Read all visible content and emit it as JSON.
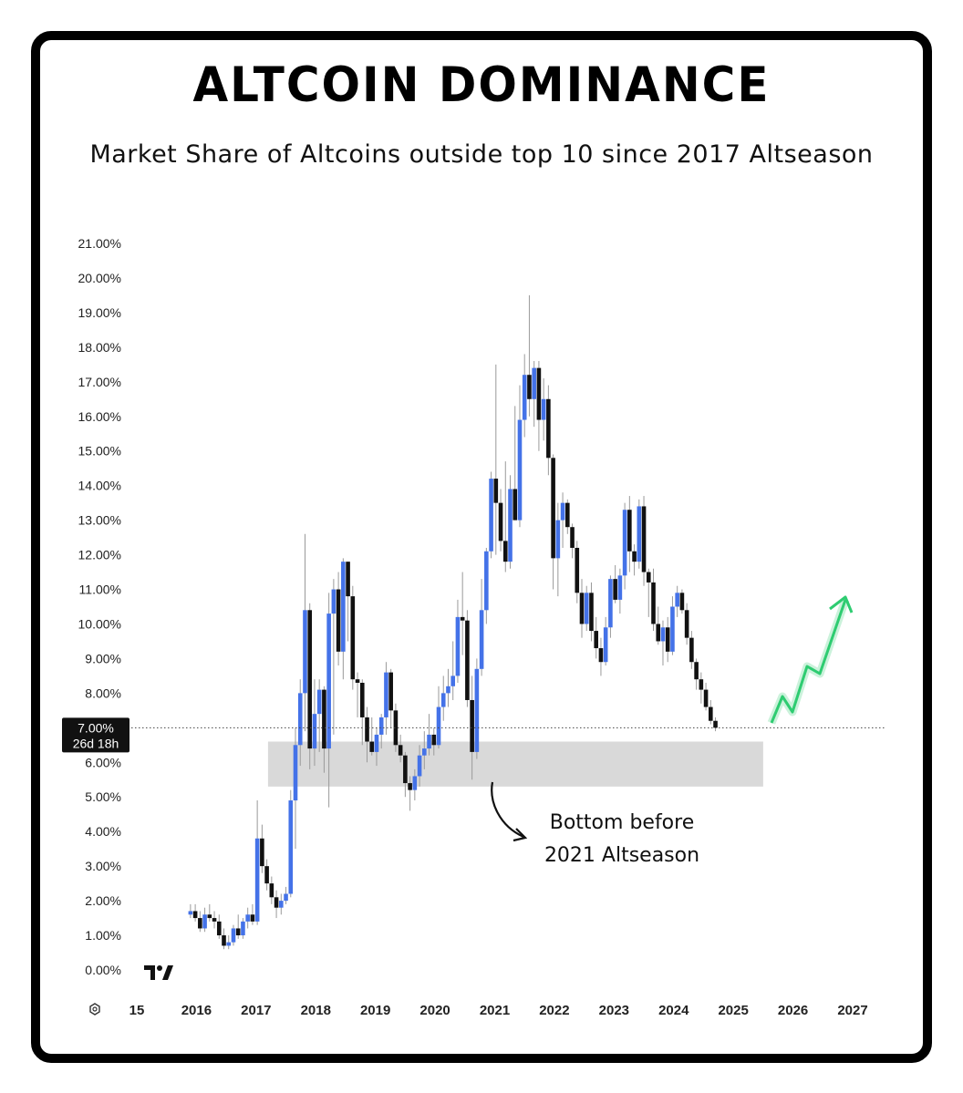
{
  "title": "ALTCOIN DOMINANCE",
  "subtitle": "Market Share of Altcoins outside top 10 since 2017 Altseason",
  "price_tag": {
    "value": "7.00%",
    "countdown": "26d 18h"
  },
  "annotation": {
    "line1": "Bottom before",
    "line2": "2021 Altseason"
  },
  "colors": {
    "up": "#4472e8",
    "down": "#111111",
    "zone": "#d9d9d9",
    "arrow": "#2ecc71"
  },
  "chart_data": {
    "type": "candlestick",
    "x_ticks": [
      "15",
      "2016",
      "2017",
      "2018",
      "2019",
      "2020",
      "2021",
      "2022",
      "2023",
      "2024",
      "2025",
      "2026",
      "2027"
    ],
    "y_ticks": [
      "21.00%",
      "20.00%",
      "19.00%",
      "18.00%",
      "17.00%",
      "16.00%",
      "15.00%",
      "14.00%",
      "13.00%",
      "12.00%",
      "11.00%",
      "10.00%",
      "9.00%",
      "8.00%",
      "7.00%",
      "6.00%",
      "5.00%",
      "4.00%",
      "3.00%",
      "2.00%",
      "1.00%",
      "0.00%"
    ],
    "ylim": [
      0,
      21
    ],
    "xlim": [
      2015.0,
      2027.0
    ],
    "current_level": 7.0,
    "support_zone": {
      "from": 5.3,
      "to": 6.6,
      "x_start": 2017.2,
      "x_end": 2025.5
    },
    "candles": [
      {
        "t": 2015.9,
        "o": 1.6,
        "h": 1.9,
        "l": 1.5,
        "c": 1.7
      },
      {
        "t": 2015.98,
        "o": 1.7,
        "h": 1.9,
        "l": 1.4,
        "c": 1.5
      },
      {
        "t": 2016.06,
        "o": 1.5,
        "h": 1.7,
        "l": 1.1,
        "c": 1.2
      },
      {
        "t": 2016.14,
        "o": 1.2,
        "h": 1.8,
        "l": 1.1,
        "c": 1.6
      },
      {
        "t": 2016.22,
        "o": 1.6,
        "h": 1.9,
        "l": 1.4,
        "c": 1.5
      },
      {
        "t": 2016.3,
        "o": 1.5,
        "h": 1.7,
        "l": 1.2,
        "c": 1.4
      },
      {
        "t": 2016.38,
        "o": 1.4,
        "h": 1.6,
        "l": 0.9,
        "c": 1.0
      },
      {
        "t": 2016.46,
        "o": 1.0,
        "h": 1.2,
        "l": 0.6,
        "c": 0.7
      },
      {
        "t": 2016.54,
        "o": 0.7,
        "h": 1.0,
        "l": 0.6,
        "c": 0.8
      },
      {
        "t": 2016.62,
        "o": 0.8,
        "h": 1.3,
        "l": 0.7,
        "c": 1.2
      },
      {
        "t": 2016.7,
        "o": 1.2,
        "h": 1.6,
        "l": 0.9,
        "c": 1.0
      },
      {
        "t": 2016.78,
        "o": 1.0,
        "h": 1.5,
        "l": 0.9,
        "c": 1.4
      },
      {
        "t": 2016.86,
        "o": 1.4,
        "h": 1.8,
        "l": 1.2,
        "c": 1.6
      },
      {
        "t": 2016.94,
        "o": 1.6,
        "h": 1.9,
        "l": 1.3,
        "c": 1.4
      },
      {
        "t": 2017.02,
        "o": 1.4,
        "h": 4.9,
        "l": 1.3,
        "c": 3.8
      },
      {
        "t": 2017.1,
        "o": 3.8,
        "h": 4.2,
        "l": 2.8,
        "c": 3.0
      },
      {
        "t": 2017.18,
        "o": 3.0,
        "h": 3.2,
        "l": 2.3,
        "c": 2.5
      },
      {
        "t": 2017.26,
        "o": 2.5,
        "h": 2.7,
        "l": 1.9,
        "c": 2.1
      },
      {
        "t": 2017.34,
        "o": 2.1,
        "h": 2.3,
        "l": 1.5,
        "c": 1.8
      },
      {
        "t": 2017.42,
        "o": 1.8,
        "h": 2.2,
        "l": 1.6,
        "c": 2.0
      },
      {
        "t": 2017.5,
        "o": 2.0,
        "h": 2.4,
        "l": 1.9,
        "c": 2.2
      },
      {
        "t": 2017.58,
        "o": 2.2,
        "h": 5.2,
        "l": 2.1,
        "c": 4.9
      },
      {
        "t": 2017.66,
        "o": 4.9,
        "h": 7.0,
        "l": 3.5,
        "c": 6.5
      },
      {
        "t": 2017.74,
        "o": 6.5,
        "h": 8.4,
        "l": 5.9,
        "c": 8.0
      },
      {
        "t": 2017.82,
        "o": 8.0,
        "h": 12.6,
        "l": 6.9,
        "c": 10.4
      },
      {
        "t": 2017.9,
        "o": 10.4,
        "h": 10.6,
        "l": 5.8,
        "c": 6.4
      },
      {
        "t": 2017.98,
        "o": 6.4,
        "h": 8.4,
        "l": 5.9,
        "c": 7.4
      },
      {
        "t": 2018.06,
        "o": 7.4,
        "h": 8.4,
        "l": 6.3,
        "c": 8.1
      },
      {
        "t": 2018.14,
        "o": 8.1,
        "h": 8.2,
        "l": 5.7,
        "c": 6.4
      },
      {
        "t": 2018.22,
        "o": 6.4,
        "h": 10.9,
        "l": 4.7,
        "c": 10.3
      },
      {
        "t": 2018.3,
        "o": 10.3,
        "h": 11.3,
        "l": 6.8,
        "c": 11.0
      },
      {
        "t": 2018.38,
        "o": 11.0,
        "h": 11.5,
        "l": 8.8,
        "c": 9.2
      },
      {
        "t": 2018.46,
        "o": 9.2,
        "h": 11.9,
        "l": 8.4,
        "c": 11.8
      },
      {
        "t": 2018.54,
        "o": 11.8,
        "h": 11.8,
        "l": 9.5,
        "c": 10.8
      },
      {
        "t": 2018.62,
        "o": 10.8,
        "h": 11.1,
        "l": 8.1,
        "c": 8.4
      },
      {
        "t": 2018.7,
        "o": 8.4,
        "h": 8.6,
        "l": 7.3,
        "c": 8.3
      },
      {
        "t": 2018.78,
        "o": 8.3,
        "h": 8.4,
        "l": 6.5,
        "c": 7.3
      },
      {
        "t": 2018.86,
        "o": 7.3,
        "h": 7.6,
        "l": 6.0,
        "c": 6.6
      },
      {
        "t": 2018.94,
        "o": 6.6,
        "h": 7.3,
        "l": 6.2,
        "c": 6.3
      },
      {
        "t": 2019.02,
        "o": 6.3,
        "h": 7.0,
        "l": 5.9,
        "c": 6.8
      },
      {
        "t": 2019.1,
        "o": 6.8,
        "h": 7.4,
        "l": 6.4,
        "c": 7.3
      },
      {
        "t": 2019.18,
        "o": 7.3,
        "h": 8.9,
        "l": 6.8,
        "c": 8.6
      },
      {
        "t": 2019.26,
        "o": 8.6,
        "h": 8.7,
        "l": 7.0,
        "c": 7.5
      },
      {
        "t": 2019.34,
        "o": 7.5,
        "h": 7.7,
        "l": 6.3,
        "c": 6.5
      },
      {
        "t": 2019.42,
        "o": 6.5,
        "h": 6.8,
        "l": 6.0,
        "c": 6.2
      },
      {
        "t": 2019.5,
        "o": 6.2,
        "h": 6.3,
        "l": 5.0,
        "c": 5.4
      },
      {
        "t": 2019.58,
        "o": 5.4,
        "h": 5.6,
        "l": 4.6,
        "c": 5.2
      },
      {
        "t": 2019.66,
        "o": 5.2,
        "h": 5.8,
        "l": 4.9,
        "c": 5.6
      },
      {
        "t": 2019.74,
        "o": 5.6,
        "h": 6.5,
        "l": 5.3,
        "c": 6.2
      },
      {
        "t": 2019.82,
        "o": 6.2,
        "h": 6.9,
        "l": 5.8,
        "c": 6.4
      },
      {
        "t": 2019.9,
        "o": 6.4,
        "h": 7.4,
        "l": 6.2,
        "c": 6.8
      },
      {
        "t": 2019.98,
        "o": 6.8,
        "h": 7.0,
        "l": 6.2,
        "c": 6.5
      },
      {
        "t": 2020.06,
        "o": 6.5,
        "h": 8.2,
        "l": 6.4,
        "c": 7.6
      },
      {
        "t": 2020.14,
        "o": 7.6,
        "h": 8.5,
        "l": 7.2,
        "c": 8.0
      },
      {
        "t": 2020.22,
        "o": 8.0,
        "h": 8.7,
        "l": 7.6,
        "c": 8.2
      },
      {
        "t": 2020.3,
        "o": 8.2,
        "h": 9.5,
        "l": 7.8,
        "c": 8.5
      },
      {
        "t": 2020.38,
        "o": 8.5,
        "h": 10.7,
        "l": 8.3,
        "c": 10.2
      },
      {
        "t": 2020.46,
        "o": 10.2,
        "h": 11.5,
        "l": 9.1,
        "c": 10.1
      },
      {
        "t": 2020.54,
        "o": 10.1,
        "h": 10.4,
        "l": 7.6,
        "c": 7.8
      },
      {
        "t": 2020.62,
        "o": 7.8,
        "h": 8.5,
        "l": 5.5,
        "c": 6.3
      },
      {
        "t": 2020.7,
        "o": 6.3,
        "h": 9.0,
        "l": 6.1,
        "c": 8.7
      },
      {
        "t": 2020.78,
        "o": 8.7,
        "h": 11.3,
        "l": 8.5,
        "c": 10.4
      },
      {
        "t": 2020.86,
        "o": 10.4,
        "h": 12.2,
        "l": 10.0,
        "c": 12.1
      },
      {
        "t": 2020.94,
        "o": 12.1,
        "h": 14.4,
        "l": 11.9,
        "c": 14.2
      },
      {
        "t": 2021.02,
        "o": 14.2,
        "h": 17.5,
        "l": 12.0,
        "c": 13.5
      },
      {
        "t": 2021.1,
        "o": 13.5,
        "h": 13.9,
        "l": 12.1,
        "c": 12.4
      },
      {
        "t": 2021.18,
        "o": 12.4,
        "h": 14.7,
        "l": 11.5,
        "c": 11.8
      },
      {
        "t": 2021.26,
        "o": 11.8,
        "h": 14.3,
        "l": 11.6,
        "c": 13.9
      },
      {
        "t": 2021.34,
        "o": 13.9,
        "h": 16.3,
        "l": 13.0,
        "c": 13.0
      },
      {
        "t": 2021.42,
        "o": 13.0,
        "h": 16.9,
        "l": 12.8,
        "c": 15.9
      },
      {
        "t": 2021.5,
        "o": 15.9,
        "h": 17.8,
        "l": 15.4,
        "c": 17.2
      },
      {
        "t": 2021.58,
        "o": 17.2,
        "h": 19.5,
        "l": 16.0,
        "c": 16.5
      },
      {
        "t": 2021.66,
        "o": 16.5,
        "h": 17.6,
        "l": 15.7,
        "c": 17.4
      },
      {
        "t": 2021.74,
        "o": 17.4,
        "h": 17.6,
        "l": 15.0,
        "c": 15.9
      },
      {
        "t": 2021.82,
        "o": 15.9,
        "h": 17.1,
        "l": 15.3,
        "c": 16.5
      },
      {
        "t": 2021.9,
        "o": 16.5,
        "h": 16.9,
        "l": 14.3,
        "c": 14.8
      },
      {
        "t": 2021.98,
        "o": 14.8,
        "h": 14.9,
        "l": 11.0,
        "c": 11.9
      },
      {
        "t": 2022.06,
        "o": 11.9,
        "h": 13.5,
        "l": 10.8,
        "c": 13.0
      },
      {
        "t": 2022.14,
        "o": 13.0,
        "h": 13.8,
        "l": 12.2,
        "c": 13.5
      },
      {
        "t": 2022.22,
        "o": 13.5,
        "h": 13.6,
        "l": 12.6,
        "c": 12.8
      },
      {
        "t": 2022.3,
        "o": 12.8,
        "h": 12.9,
        "l": 11.9,
        "c": 12.2
      },
      {
        "t": 2022.38,
        "o": 12.2,
        "h": 12.4,
        "l": 10.6,
        "c": 10.9
      },
      {
        "t": 2022.46,
        "o": 10.9,
        "h": 11.3,
        "l": 9.6,
        "c": 10.0
      },
      {
        "t": 2022.54,
        "o": 10.0,
        "h": 11.1,
        "l": 9.8,
        "c": 10.9
      },
      {
        "t": 2022.62,
        "o": 10.9,
        "h": 11.2,
        "l": 9.5,
        "c": 9.8
      },
      {
        "t": 2022.7,
        "o": 9.8,
        "h": 10.2,
        "l": 9.0,
        "c": 9.3
      },
      {
        "t": 2022.78,
        "o": 9.3,
        "h": 9.6,
        "l": 8.5,
        "c": 8.9
      },
      {
        "t": 2022.86,
        "o": 8.9,
        "h": 10.2,
        "l": 8.8,
        "c": 9.9
      },
      {
        "t": 2022.94,
        "o": 9.9,
        "h": 11.4,
        "l": 9.6,
        "c": 11.3
      },
      {
        "t": 2023.02,
        "o": 11.3,
        "h": 11.7,
        "l": 10.6,
        "c": 10.7
      },
      {
        "t": 2023.1,
        "o": 10.7,
        "h": 11.6,
        "l": 10.3,
        "c": 11.4
      },
      {
        "t": 2023.18,
        "o": 11.4,
        "h": 13.5,
        "l": 11.0,
        "c": 13.3
      },
      {
        "t": 2023.26,
        "o": 13.3,
        "h": 13.7,
        "l": 11.5,
        "c": 12.1
      },
      {
        "t": 2023.34,
        "o": 12.1,
        "h": 12.3,
        "l": 11.4,
        "c": 11.8
      },
      {
        "t": 2023.42,
        "o": 11.8,
        "h": 13.6,
        "l": 11.6,
        "c": 13.4
      },
      {
        "t": 2023.5,
        "o": 13.4,
        "h": 13.7,
        "l": 11.1,
        "c": 11.5
      },
      {
        "t": 2023.58,
        "o": 11.5,
        "h": 11.6,
        "l": 10.2,
        "c": 11.2
      },
      {
        "t": 2023.66,
        "o": 11.2,
        "h": 11.6,
        "l": 9.8,
        "c": 10.0
      },
      {
        "t": 2023.74,
        "o": 10.0,
        "h": 10.5,
        "l": 9.4,
        "c": 9.5
      },
      {
        "t": 2023.82,
        "o": 9.5,
        "h": 10.1,
        "l": 8.8,
        "c": 9.9
      },
      {
        "t": 2023.9,
        "o": 9.9,
        "h": 10.2,
        "l": 8.9,
        "c": 9.2
      },
      {
        "t": 2023.98,
        "o": 9.2,
        "h": 10.8,
        "l": 9.1,
        "c": 10.5
      },
      {
        "t": 2024.06,
        "o": 10.5,
        "h": 11.1,
        "l": 10.2,
        "c": 10.9
      },
      {
        "t": 2024.14,
        "o": 10.9,
        "h": 11.0,
        "l": 10.3,
        "c": 10.4
      },
      {
        "t": 2024.22,
        "o": 10.4,
        "h": 10.6,
        "l": 9.4,
        "c": 9.6
      },
      {
        "t": 2024.3,
        "o": 9.6,
        "h": 9.8,
        "l": 8.7,
        "c": 8.9
      },
      {
        "t": 2024.38,
        "o": 8.9,
        "h": 9.0,
        "l": 8.1,
        "c": 8.4
      },
      {
        "t": 2024.46,
        "o": 8.4,
        "h": 8.6,
        "l": 7.7,
        "c": 8.1
      },
      {
        "t": 2024.54,
        "o": 8.1,
        "h": 8.3,
        "l": 7.5,
        "c": 7.6
      },
      {
        "t": 2024.62,
        "o": 7.6,
        "h": 7.8,
        "l": 7.1,
        "c": 7.2
      },
      {
        "t": 2024.7,
        "o": 7.2,
        "h": 7.3,
        "l": 6.9,
        "c": 7.0
      }
    ]
  }
}
